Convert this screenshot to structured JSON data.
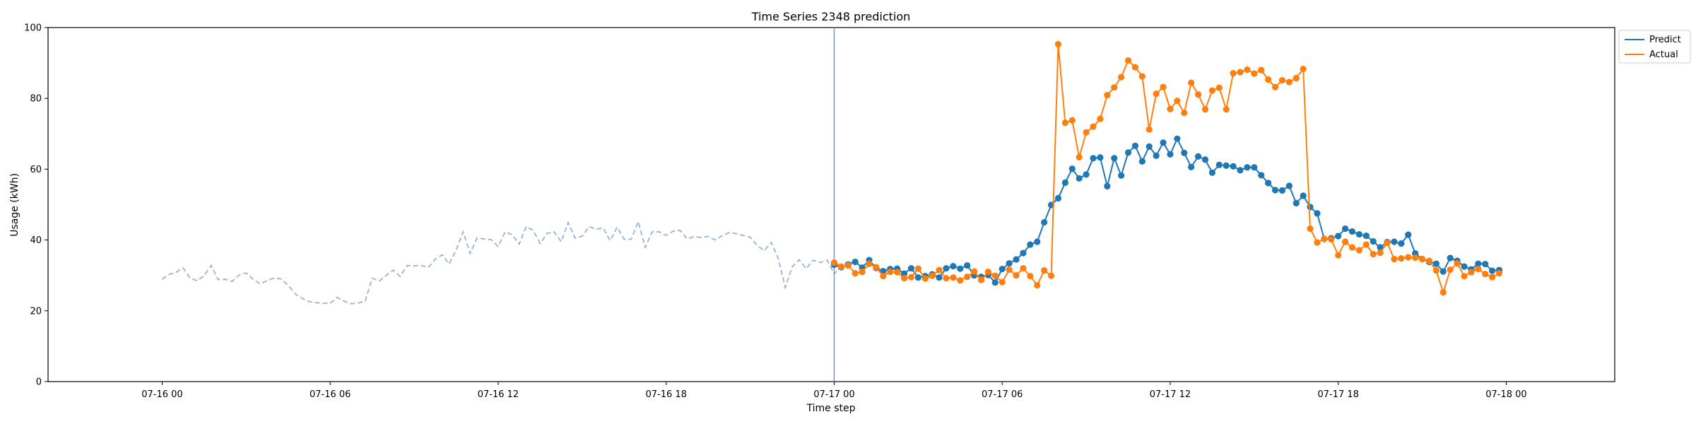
{
  "chart_data": {
    "type": "line",
    "title": "Time Series 2348 prediction",
    "xlabel": "Time step",
    "ylabel": "Usage (kWh)",
    "ylim": [
      0,
      100
    ],
    "yticks": [
      0,
      20,
      40,
      60,
      80,
      100
    ],
    "x_axis": {
      "start": "07-16 00:00",
      "step_minutes": 15,
      "range_steps": [
        -16.3,
        207.5
      ],
      "tick_labels": [
        "07-16 00",
        "07-16 06",
        "07-16 12",
        "07-16 18",
        "07-17 00",
        "07-17 06",
        "07-17 12",
        "07-17 18",
        "07-18 00"
      ],
      "tick_steps": [
        0,
        24,
        48,
        72,
        96,
        120,
        144,
        168,
        192
      ]
    },
    "grid": false,
    "legend_position": "outside-top-right",
    "forecast_start": "07-17 00:00",
    "colors": {
      "history": "#98b4d4",
      "predict": "#1f77b4",
      "actual": "#ff7f0e",
      "divider": "#7f94c2"
    },
    "history": {
      "start": "07-16 00:00",
      "values": [
        28.9,
        30.3,
        30.9,
        32.1,
        29.2,
        28.5,
        29.9,
        32.8,
        28.8,
        28.9,
        28.3,
        30.1,
        30.7,
        28.9,
        27.6,
        28.5,
        29.3,
        29.0,
        27.2,
        24.8,
        23.5,
        22.6,
        22.3,
        22.1,
        22.1,
        23.8,
        22.7,
        22.0,
        22.2,
        22.7,
        29.2,
        28.4,
        30.0,
        31.5,
        29.7,
        32.8,
        32.7,
        32.8,
        32.2,
        34.6,
        35.8,
        33.2,
        37.2,
        42.3,
        36.2,
        40.6,
        40.3,
        40.1,
        38.2,
        42.3,
        41.5,
        38.8,
        43.8,
        42.7,
        39.0,
        41.9,
        42.3,
        39.5,
        44.9,
        40.5,
        41.1,
        43.8,
        43.0,
        43.4,
        39.8,
        43.6,
        40.2,
        40.2,
        45.2,
        37.9,
        42.3,
        42.3,
        41.3,
        42.5,
        42.7,
        40.3,
        41.0,
        40.7,
        41.0,
        40.0,
        41.2,
        42.1,
        41.8,
        41.3,
        40.8,
        38.5,
        37.0,
        39.3,
        34.8,
        26.6,
        32.4,
        34.4,
        31.9,
        34.3,
        33.6,
        34.3,
        30.4,
        32.6,
        33.7
      ]
    },
    "series": [
      {
        "name": "Predict",
        "start": "07-17 00:00",
        "values": [
          33.0,
          32.3,
          33.1,
          33.8,
          32.2,
          34.3,
          32.1,
          31.2,
          31.8,
          31.9,
          30.5,
          32.0,
          29.4,
          29.8,
          30.3,
          29.4,
          32.0,
          32.6,
          31.9,
          32.8,
          30.0,
          29.6,
          30.1,
          28.0,
          31.8,
          33.4,
          34.5,
          36.3,
          38.7,
          39.5,
          45.0,
          49.9,
          51.8,
          56.2,
          60.1,
          57.4,
          58.5,
          63.1,
          63.3,
          55.2,
          63.1,
          58.2,
          64.7,
          66.6,
          62.2,
          66.4,
          63.8,
          67.5,
          64.2,
          68.6,
          64.6,
          60.6,
          63.6,
          62.7,
          59.0,
          61.2,
          61.0,
          60.8,
          59.7,
          60.5,
          60.5,
          58.3,
          56.1,
          54.1,
          54.0,
          55.3,
          50.4,
          52.5,
          49.3,
          47.5,
          40.3,
          40.5,
          41.1,
          43.2,
          42.4,
          41.6,
          41.2,
          39.6,
          37.9,
          39.4,
          39.5,
          39.0,
          41.5,
          36.2,
          34.6,
          33.8,
          33.3,
          31.1,
          34.9,
          34.1,
          32.5,
          31.7,
          33.3,
          33.2,
          31.3,
          31.5
        ]
      },
      {
        "name": "Actual",
        "start": "07-17 00:00",
        "values": [
          33.6,
          32.5,
          32.8,
          30.6,
          31.0,
          33.3,
          32.3,
          29.8,
          31.0,
          30.9,
          29.2,
          29.5,
          31.9,
          29.1,
          29.9,
          31.5,
          29.2,
          29.4,
          28.6,
          29.6,
          31.1,
          28.7,
          31.0,
          29.9,
          28.1,
          31.6,
          30.0,
          32.0,
          29.8,
          27.2,
          31.4,
          29.9,
          95.3,
          73.1,
          73.8,
          63.4,
          70.4,
          72.0,
          74.2,
          80.9,
          83.1,
          86.0,
          90.7,
          88.8,
          86.2,
          71.2,
          81.3,
          83.2,
          77.0,
          79.3,
          75.9,
          84.4,
          81.1,
          76.9,
          82.2,
          83.0,
          76.9,
          87.1,
          87.4,
          88.1,
          87.0,
          88.0,
          85.3,
          83.2,
          85.1,
          84.6,
          85.7,
          88.3,
          43.2,
          39.3,
          40.3,
          40.2,
          35.7,
          39.5,
          37.9,
          37.1,
          38.7,
          36.0,
          36.4,
          39.2,
          34.6,
          34.8,
          35.1,
          35.0,
          34.6,
          34.1,
          31.4,
          25.2,
          31.6,
          33.4,
          29.8,
          30.9,
          31.8,
          30.4,
          29.5,
          30.6
        ]
      }
    ]
  }
}
